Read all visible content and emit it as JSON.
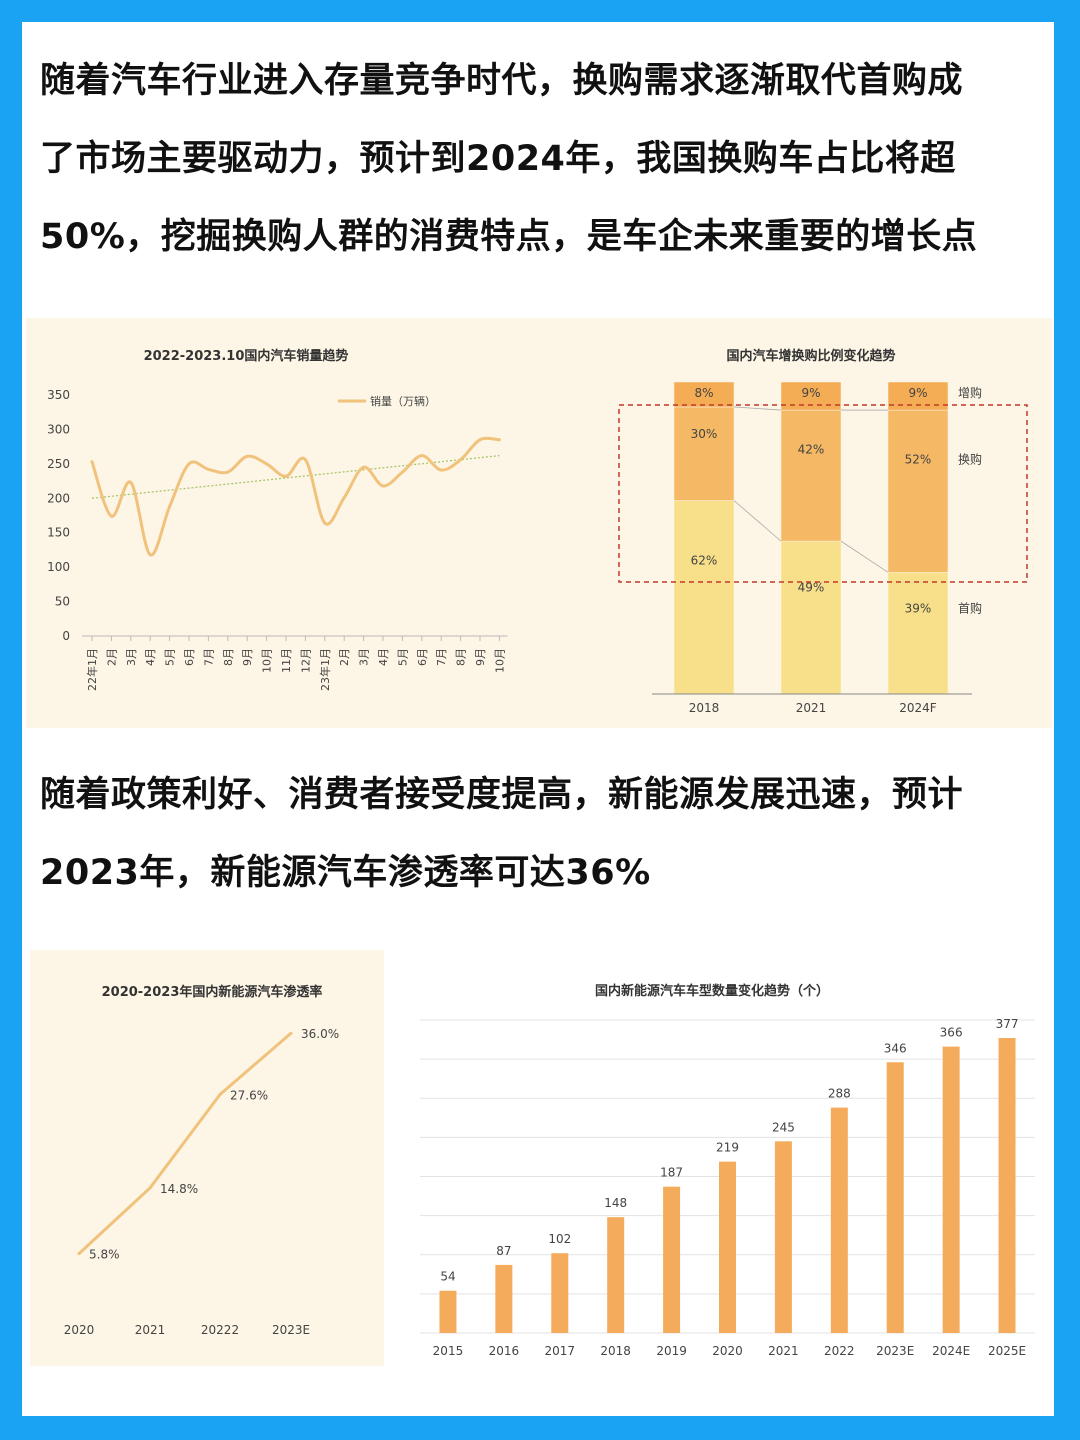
{
  "intro": {
    "line1": "随着汽车行业进入存量竞争时代，换购需求逐渐取代首购成",
    "line2": "了市场主要驱动力，预计到2024年，我国换购车占比将超",
    "line3": "50%，挖掘换购人群的消费特点，是车企未来重要的增长点"
  },
  "section2": {
    "line1": "随着政策利好、消费者接受度提高，新能源发展迅速，预计",
    "line2": "2023年，新能源汽车渗透率可达36%"
  },
  "colors": {
    "line": "#f0c27c",
    "trend": "#a8c56a",
    "first_buy": "#f8e08a",
    "replace_buy": "#f5b865",
    "add_buy": "#f4ac55",
    "bar": "#f4ac5c",
    "dashed_box": "#c0392b"
  },
  "chart_data": [
    {
      "type": "line",
      "title": "2022-2023.10国内汽车销量趋势",
      "legend": "销量（万辆）",
      "x": [
        "22年1月",
        "2月",
        "3月",
        "4月",
        "5月",
        "6月",
        "7月",
        "8月",
        "9月",
        "10月",
        "11月",
        "12月",
        "23年1月",
        "2月",
        "3月",
        "4月",
        "5月",
        "6月",
        "7月",
        "8月",
        "9月",
        "10月"
      ],
      "series": [
        {
          "name": "销量（万辆）",
          "values": [
            253,
            174,
            223,
            118,
            188,
            250,
            242,
            238,
            261,
            250,
            232,
            256,
            164,
            201,
            245,
            218,
            238,
            262,
            241,
            256,
            285,
            285
          ]
        }
      ],
      "trendline": {
        "start": 200,
        "end": 262
      },
      "yticks": [
        0,
        50,
        100,
        150,
        200,
        250,
        300,
        350
      ],
      "ylim": [
        0,
        350
      ],
      "grid": false
    },
    {
      "type": "bar",
      "stacked": true,
      "title": "国内汽车增换购比例变化趋势",
      "categories": [
        "2018",
        "2021",
        "2024F"
      ],
      "series": [
        {
          "name": "首购",
          "values": [
            62,
            49,
            39
          ],
          "labels": [
            "62%",
            "49%",
            "39%"
          ]
        },
        {
          "name": "换购",
          "values": [
            30,
            42,
            52
          ],
          "labels": [
            "30%",
            "42%",
            "52%"
          ]
        },
        {
          "name": "增购",
          "values": [
            8,
            9,
            9
          ],
          "labels": [
            "8%",
            "9%",
            "9%"
          ]
        }
      ]
    },
    {
      "type": "line",
      "title": "2020-2023年国内新能源汽车渗透率",
      "x": [
        "2020",
        "2021",
        "20222",
        "2023E"
      ],
      "values": [
        5.8,
        14.8,
        27.6,
        36.0
      ],
      "labels": [
        "5.8%",
        "14.8%",
        "27.6%",
        "36.0%"
      ],
      "ylim": [
        0,
        40
      ]
    },
    {
      "type": "bar",
      "title": "国内新能源汽车车型数量变化趋势（个）",
      "categories": [
        "2015",
        "2016",
        "2017",
        "2018",
        "2019",
        "2020",
        "2021",
        "2022",
        "2023E",
        "2024E",
        "2025E"
      ],
      "values": [
        54,
        87,
        102,
        148,
        187,
        219,
        245,
        288,
        346,
        366,
        377
      ],
      "ylim": [
        0,
        400
      ],
      "grid": true
    }
  ]
}
